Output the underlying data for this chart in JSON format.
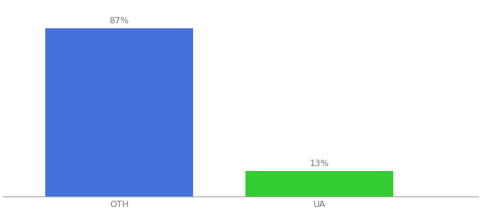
{
  "categories": [
    "OTH",
    "UA"
  ],
  "values": [
    87,
    13
  ],
  "bar_colors": [
    "#4472db",
    "#33cc33"
  ],
  "ylim": [
    0,
    100
  ],
  "bar_width": 0.28,
  "label_fontsize": 9,
  "tick_fontsize": 9,
  "background_color": "#ffffff",
  "value_labels": [
    "87%",
    "13%"
  ],
  "x_positions": [
    0.27,
    0.65
  ],
  "xlim": [
    0.05,
    0.95
  ],
  "label_color": "#777777",
  "tick_color": "#777777",
  "spine_color": "#aaaaaa"
}
